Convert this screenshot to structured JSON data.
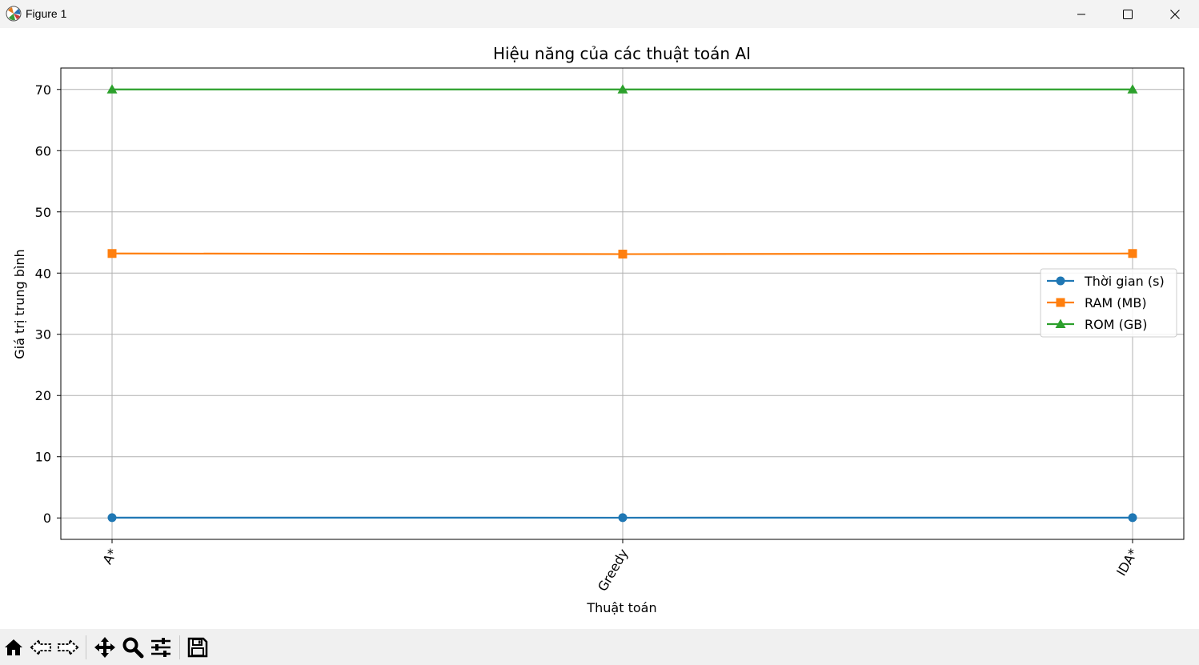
{
  "window": {
    "title": "Figure 1",
    "icon": "matplotlib-icon",
    "controls": [
      "minimize-icon",
      "maximize-icon",
      "close-icon"
    ]
  },
  "toolbar": {
    "items": [
      "home-icon",
      "back-arrow-icon",
      "forward-arrow-icon",
      "pan-move-icon",
      "zoom-magnifier-icon",
      "configure-subplots-icon",
      "save-floppy-icon"
    ]
  },
  "chart_data": {
    "type": "line",
    "title": "Hiệu năng của các thuật toán AI",
    "xlabel": "Thuật toán",
    "ylabel": "Giá trị trung bình",
    "categories": [
      "A*",
      "Greedy",
      "IDA*"
    ],
    "ylim": [
      -3.5,
      73.5
    ],
    "yticks": [
      0,
      10,
      20,
      30,
      40,
      50,
      60,
      70
    ],
    "grid": true,
    "legend_position": "center-right",
    "series": [
      {
        "name": "Thời gian (s)",
        "values": [
          0.05,
          0.04,
          0.05
        ],
        "color": "#1f77b4",
        "marker": "circle"
      },
      {
        "name": "RAM (MB)",
        "values": [
          43.2,
          43.1,
          43.2
        ],
        "color": "#ff7f0e",
        "marker": "square"
      },
      {
        "name": "ROM (GB)",
        "values": [
          70.0,
          70.0,
          70.0
        ],
        "color": "#2ca02c",
        "marker": "triangle"
      }
    ]
  }
}
